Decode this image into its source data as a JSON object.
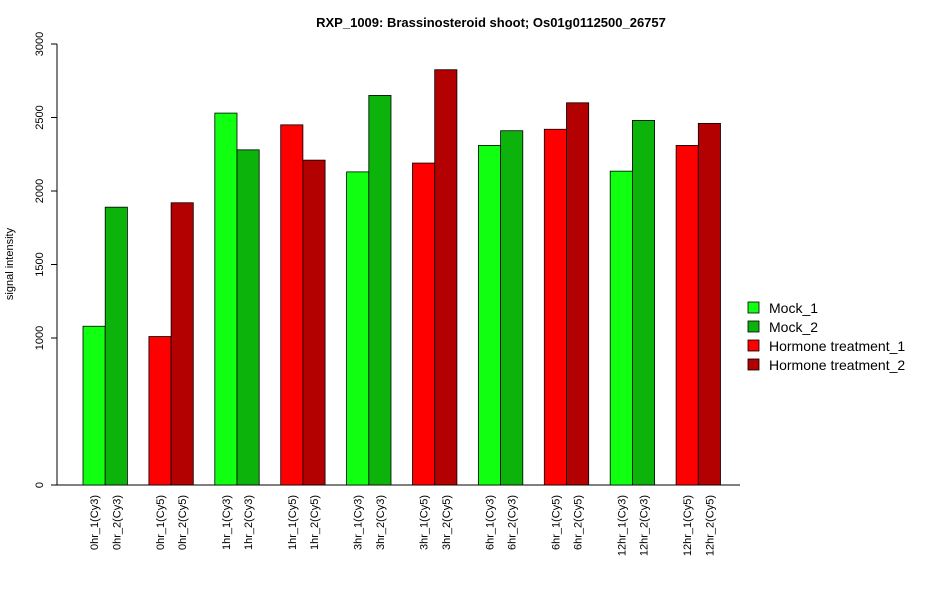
{
  "chart_data": {
    "type": "bar",
    "title": "RXP_1009: Brassinosteroid shoot; Os01g0112500_26757",
    "xlabel": "",
    "ylabel": "signal intensity",
    "ylim": [
      0,
      3000
    ],
    "yticks": [
      0,
      1000,
      1500,
      2000,
      2500,
      3000
    ],
    "legend_position": "right",
    "grid": false,
    "series": [
      {
        "name": "Mock_1",
        "color": "#11FF11"
      },
      {
        "name": "Mock_2",
        "color": "#0BB30B"
      },
      {
        "name": "Hormone treatment_1",
        "color": "#FF0000"
      },
      {
        "name": "Hormone treatment_2",
        "color": "#B30000"
      }
    ],
    "bars": [
      {
        "label": "0hr_1(Cy3)",
        "value": 1080,
        "series": 0
      },
      {
        "label": "0hr_2(Cy3)",
        "value": 1890,
        "series": 1
      },
      {
        "label": "0hr_1(Cy5)",
        "value": 1010,
        "series": 2
      },
      {
        "label": "0hr_2(Cy5)",
        "value": 1920,
        "series": 3
      },
      {
        "label": "1hr_1(Cy3)",
        "value": 2530,
        "series": 0
      },
      {
        "label": "1hr_2(Cy3)",
        "value": 2280,
        "series": 1
      },
      {
        "label": "1hr_1(Cy5)",
        "value": 2450,
        "series": 2
      },
      {
        "label": "1hr_2(Cy5)",
        "value": 2210,
        "series": 3
      },
      {
        "label": "3hr_1(Cy3)",
        "value": 2130,
        "series": 0
      },
      {
        "label": "3hr_2(Cy3)",
        "value": 2650,
        "series": 1
      },
      {
        "label": "3hr_1(Cy5)",
        "value": 2190,
        "series": 2
      },
      {
        "label": "3hr_2(Cy5)",
        "value": 2825,
        "series": 3
      },
      {
        "label": "6hr_1(Cy3)",
        "value": 2310,
        "series": 0
      },
      {
        "label": "6hr_2(Cy3)",
        "value": 2410,
        "series": 1
      },
      {
        "label": "6hr_1(Cy5)",
        "value": 2420,
        "series": 2
      },
      {
        "label": "6hr_2(Cy5)",
        "value": 2600,
        "series": 3
      },
      {
        "label": "12hr_1(Cy3)",
        "value": 2135,
        "series": 0
      },
      {
        "label": "12hr_2(Cy3)",
        "value": 2480,
        "series": 1
      },
      {
        "label": "12hr_1(Cy5)",
        "value": 2310,
        "series": 2
      },
      {
        "label": "12hr_2(Cy5)",
        "value": 2460,
        "series": 3
      }
    ]
  }
}
